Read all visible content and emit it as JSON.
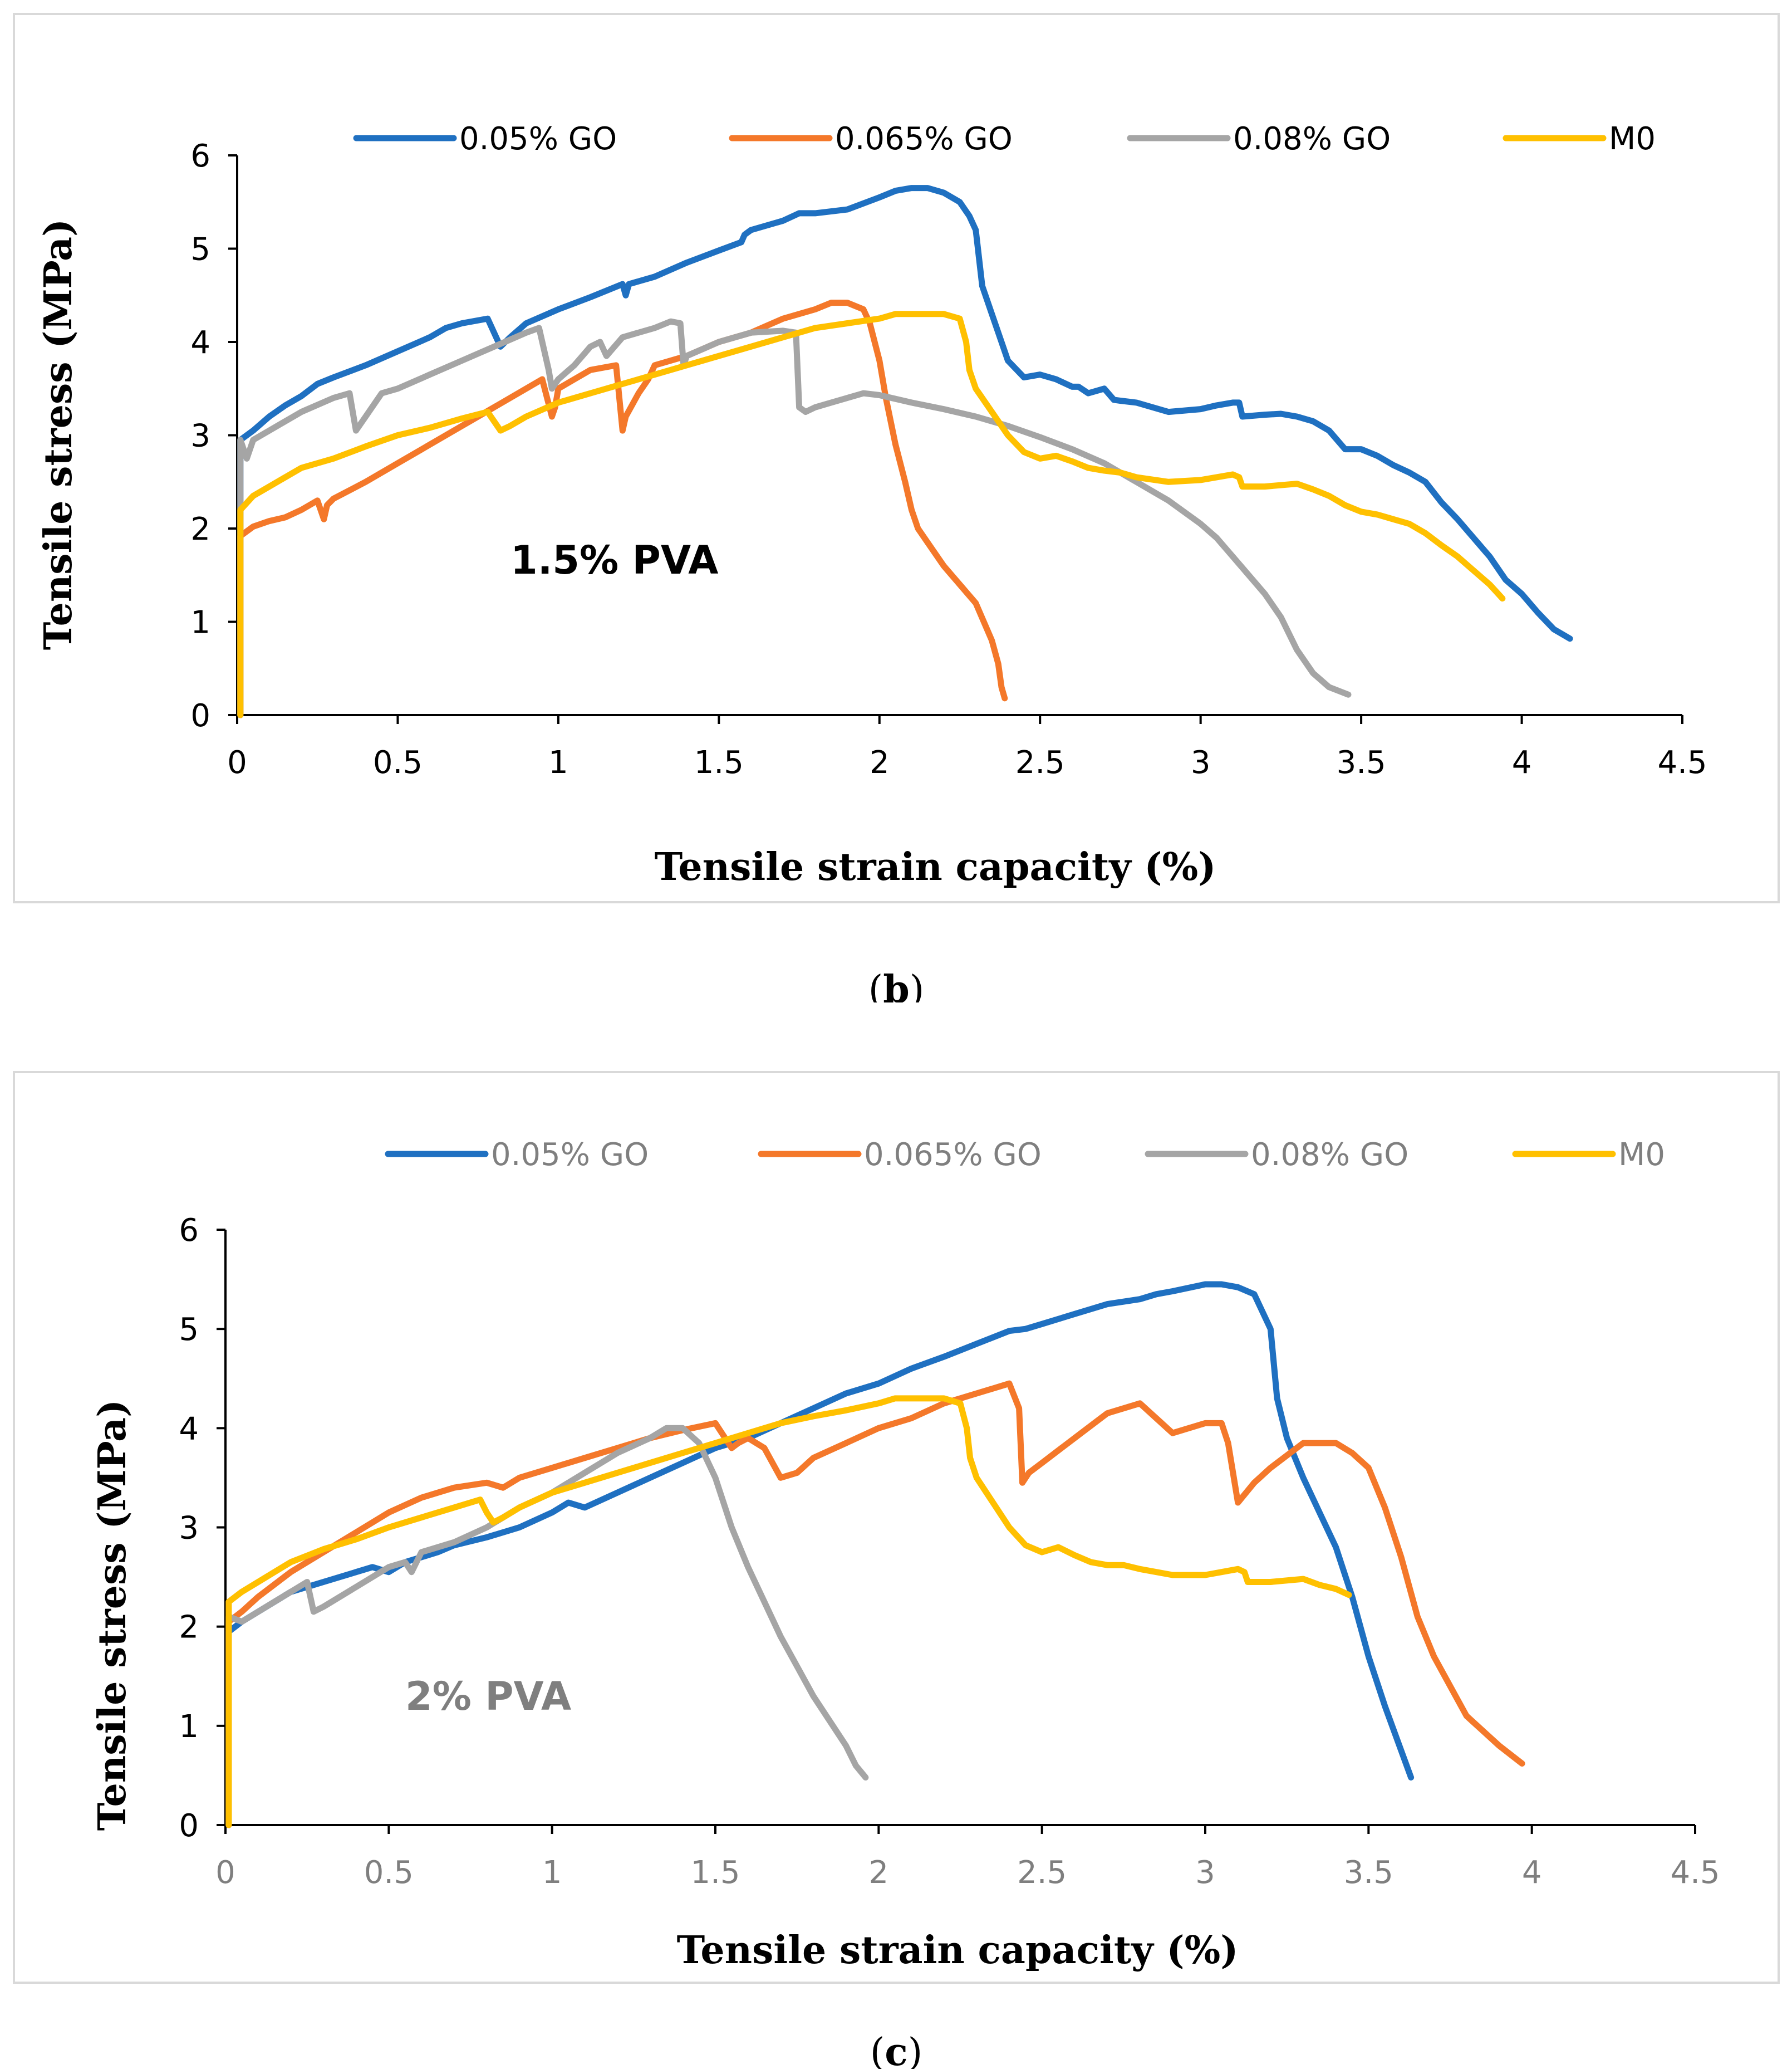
{
  "colors": {
    "s005": "#1F70C1",
    "s0065": "#F4782A",
    "s008": "#A5A5A5",
    "sM0": "#FFC000",
    "frame": "#D9D9D9",
    "axis": "#000000"
  },
  "chart_data": [
    {
      "type": "line",
      "caption_letter": "b",
      "annotation": "1.5% PVA",
      "xlabel": "Tensile strain capacity (%)",
      "ylabel": "Tensile stress (MPa)",
      "xlim": [
        0,
        4.5
      ],
      "ylim": [
        0,
        6
      ],
      "xticks": [
        "0",
        "0.5",
        "1",
        "1.5",
        "2",
        "2.5",
        "3",
        "3.5",
        "4",
        "4.5"
      ],
      "yticks": [
        "0",
        "1",
        "2",
        "3",
        "4",
        "5",
        "6"
      ],
      "series": [
        {
          "name": "0.05% GO",
          "color_key": "s005",
          "x": [
            0.01,
            0.01,
            0.05,
            0.1,
            0.15,
            0.2,
            0.25,
            0.3,
            0.4,
            0.5,
            0.6,
            0.65,
            0.7,
            0.78,
            0.8,
            0.82,
            0.85,
            0.9,
            1,
            1.1,
            1.2,
            1.21,
            1.22,
            1.3,
            1.4,
            1.5,
            1.57,
            1.58,
            1.6,
            1.7,
            1.75,
            1.8,
            1.9,
            2,
            2.05,
            2.1,
            2.15,
            2.2,
            2.25,
            2.28,
            2.3,
            2.31,
            2.32,
            2.35,
            2.38,
            2.4,
            2.45,
            2.5,
            2.55,
            2.6,
            2.62,
            2.65,
            2.7,
            2.73,
            2.75,
            2.8,
            2.9,
            3,
            3.05,
            3.1,
            3.12,
            3.13,
            3.2,
            3.25,
            3.3,
            3.35,
            3.4,
            3.45,
            3.5,
            3.55,
            3.6,
            3.65,
            3.7,
            3.75,
            3.8,
            3.85,
            3.9,
            3.95,
            4,
            4.05,
            4.1,
            4.15
          ],
          "y": [
            0,
            2.95,
            3.05,
            3.2,
            3.32,
            3.42,
            3.55,
            3.62,
            3.75,
            3.9,
            4.05,
            4.15,
            4.2,
            4.25,
            4.1,
            3.95,
            4.05,
            4.2,
            4.35,
            4.48,
            4.62,
            4.5,
            4.62,
            4.7,
            4.85,
            4.98,
            5.07,
            5.15,
            5.2,
            5.3,
            5.38,
            5.38,
            5.42,
            5.55,
            5.62,
            5.65,
            5.65,
            5.6,
            5.5,
            5.35,
            5.2,
            4.9,
            4.6,
            4.3,
            4.0,
            3.8,
            3.62,
            3.65,
            3.6,
            3.52,
            3.52,
            3.45,
            3.5,
            3.38,
            3.37,
            3.35,
            3.25,
            3.28,
            3.32,
            3.35,
            3.35,
            3.2,
            3.22,
            3.23,
            3.2,
            3.15,
            3.05,
            2.85,
            2.85,
            2.78,
            2.68,
            2.6,
            2.5,
            2.28,
            2.1,
            1.9,
            1.7,
            1.45,
            1.3,
            1.1,
            0.92,
            0.82
          ]
        },
        {
          "name": "0.065% GO",
          "color_key": "s0065",
          "x": [
            0.01,
            0.01,
            0.05,
            0.1,
            0.15,
            0.2,
            0.25,
            0.27,
            0.28,
            0.3,
            0.4,
            0.5,
            0.6,
            0.7,
            0.8,
            0.9,
            0.95,
            0.98,
            0.99,
            1,
            1.05,
            1.1,
            1.18,
            1.2,
            1.21,
            1.25,
            1.28,
            1.3,
            1.4,
            1.5,
            1.6,
            1.7,
            1.8,
            1.85,
            1.9,
            1.95,
            1.97,
            2,
            2.02,
            2.05,
            2.08,
            2.1,
            2.12,
            2.15,
            2.2,
            2.25,
            2.3,
            2.35,
            2.37,
            2.38,
            2.39
          ],
          "y": [
            0,
            1.92,
            2.02,
            2.08,
            2.12,
            2.2,
            2.3,
            2.1,
            2.25,
            2.32,
            2.5,
            2.7,
            2.9,
            3.1,
            3.3,
            3.5,
            3.6,
            3.2,
            3.3,
            3.5,
            3.6,
            3.7,
            3.75,
            3.05,
            3.2,
            3.45,
            3.6,
            3.75,
            3.85,
            4.0,
            4.1,
            4.25,
            4.35,
            4.42,
            4.42,
            4.35,
            4.2,
            3.8,
            3.4,
            2.9,
            2.5,
            2.2,
            2.0,
            1.85,
            1.6,
            1.4,
            1.2,
            0.8,
            0.55,
            0.3,
            0.18
          ]
        },
        {
          "name": "0.08% GO",
          "color_key": "s008",
          "x": [
            0.01,
            0.01,
            0.03,
            0.05,
            0.1,
            0.2,
            0.3,
            0.35,
            0.37,
            0.4,
            0.45,
            0.5,
            0.6,
            0.7,
            0.8,
            0.9,
            0.94,
            0.97,
            0.98,
            1,
            1.05,
            1.1,
            1.13,
            1.15,
            1.2,
            1.3,
            1.35,
            1.38,
            1.39,
            1.4,
            1.5,
            1.6,
            1.7,
            1.74,
            1.75,
            1.77,
            1.8,
            1.85,
            1.9,
            1.95,
            2,
            2.1,
            2.2,
            2.3,
            2.4,
            2.5,
            2.6,
            2.7,
            2.8,
            2.9,
            3,
            3.05,
            3.1,
            3.15,
            3.2,
            3.25,
            3.3,
            3.35,
            3.4,
            3.46
          ],
          "y": [
            0,
            2.95,
            2.75,
            2.95,
            3.05,
            3.25,
            3.4,
            3.45,
            3.05,
            3.2,
            3.45,
            3.5,
            3.65,
            3.8,
            3.95,
            4.1,
            4.15,
            3.7,
            3.5,
            3.6,
            3.75,
            3.95,
            4.0,
            3.85,
            4.05,
            4.15,
            4.22,
            4.2,
            3.75,
            3.85,
            4.0,
            4.1,
            4.12,
            4.1,
            3.3,
            3.25,
            3.3,
            3.35,
            3.4,
            3.45,
            3.43,
            3.35,
            3.28,
            3.2,
            3.1,
            2.98,
            2.85,
            2.7,
            2.5,
            2.3,
            2.05,
            1.9,
            1.7,
            1.5,
            1.3,
            1.05,
            0.7,
            0.45,
            0.3,
            0.22
          ]
        },
        {
          "name": "M0",
          "color_key": "sM0",
          "x": [
            0.01,
            0.01,
            0.05,
            0.1,
            0.2,
            0.3,
            0.4,
            0.5,
            0.6,
            0.7,
            0.78,
            0.8,
            0.82,
            0.85,
            0.9,
            1,
            1.1,
            1.2,
            1.3,
            1.4,
            1.5,
            1.6,
            1.7,
            1.8,
            1.9,
            2,
            2.05,
            2.1,
            2.15,
            2.2,
            2.25,
            2.27,
            2.28,
            2.3,
            2.35,
            2.4,
            2.45,
            2.5,
            2.55,
            2.6,
            2.65,
            2.7,
            2.75,
            2.8,
            2.9,
            3,
            3.05,
            3.1,
            3.12,
            3.13,
            3.2,
            3.3,
            3.35,
            3.4,
            3.45,
            3.5,
            3.55,
            3.6,
            3.65,
            3.7,
            3.75,
            3.8,
            3.85,
            3.9,
            3.94
          ],
          "y": [
            0,
            2.2,
            2.35,
            2.45,
            2.65,
            2.75,
            2.88,
            3.0,
            3.08,
            3.18,
            3.25,
            3.15,
            3.05,
            3.1,
            3.2,
            3.35,
            3.45,
            3.55,
            3.65,
            3.75,
            3.85,
            3.95,
            4.05,
            4.15,
            4.2,
            4.25,
            4.3,
            4.3,
            4.3,
            4.3,
            4.25,
            4.0,
            3.7,
            3.5,
            3.25,
            3.0,
            2.82,
            2.75,
            2.78,
            2.72,
            2.65,
            2.62,
            2.6,
            2.55,
            2.5,
            2.52,
            2.55,
            2.58,
            2.55,
            2.45,
            2.45,
            2.48,
            2.42,
            2.35,
            2.25,
            2.18,
            2.15,
            2.1,
            2.05,
            1.95,
            1.82,
            1.7,
            1.55,
            1.4,
            1.25
          ]
        }
      ]
    },
    {
      "type": "line",
      "caption_letter": "c",
      "annotation": "2% PVA",
      "xlabel": "Tensile strain capacity (%)",
      "ylabel": "Tensile stress (MPa)",
      "xlim": [
        0,
        4.5
      ],
      "ylim": [
        0,
        6
      ],
      "xticks": [
        "0",
        "0.5",
        "1",
        "1.5",
        "2",
        "2.5",
        "3",
        "3.5",
        "4",
        "4.5"
      ],
      "yticks": [
        "0",
        "1",
        "2",
        "3",
        "4",
        "5",
        "6"
      ],
      "series": [
        {
          "name": "0.05% GO",
          "color_key": "s005",
          "x": [
            0.01,
            0.01,
            0.05,
            0.1,
            0.2,
            0.3,
            0.4,
            0.45,
            0.5,
            0.55,
            0.6,
            0.65,
            0.7,
            0.8,
            0.9,
            1,
            1.05,
            1.1,
            1.2,
            1.3,
            1.4,
            1.5,
            1.6,
            1.7,
            1.8,
            1.9,
            2,
            2.1,
            2.2,
            2.3,
            2.4,
            2.45,
            2.5,
            2.55,
            2.6,
            2.7,
            2.8,
            2.85,
            2.9,
            3,
            3.05,
            3.1,
            3.15,
            3.2,
            3.22,
            3.25,
            3.3,
            3.35,
            3.4,
            3.45,
            3.5,
            3.55,
            3.6,
            3.63
          ],
          "y": [
            0,
            1.95,
            2.05,
            2.15,
            2.35,
            2.45,
            2.55,
            2.6,
            2.55,
            2.65,
            2.7,
            2.75,
            2.82,
            2.9,
            3.0,
            3.15,
            3.25,
            3.2,
            3.35,
            3.5,
            3.65,
            3.8,
            3.9,
            4.05,
            4.2,
            4.35,
            4.45,
            4.6,
            4.72,
            4.85,
            4.98,
            5.0,
            5.05,
            5.1,
            5.15,
            5.25,
            5.3,
            5.35,
            5.38,
            5.45,
            5.45,
            5.42,
            5.35,
            5.0,
            4.3,
            3.9,
            3.5,
            3.15,
            2.8,
            2.3,
            1.7,
            1.2,
            0.75,
            0.48
          ]
        },
        {
          "name": "0.065% GO",
          "color_key": "s0065",
          "x": [
            0.01,
            0.01,
            0.05,
            0.1,
            0.2,
            0.3,
            0.4,
            0.5,
            0.6,
            0.7,
            0.8,
            0.85,
            0.9,
            0.95,
            1,
            1.1,
            1.2,
            1.3,
            1.4,
            1.5,
            1.55,
            1.57,
            1.6,
            1.65,
            1.7,
            1.75,
            1.8,
            1.9,
            2,
            2.1,
            2.2,
            2.3,
            2.35,
            2.4,
            2.43,
            2.44,
            2.46,
            2.5,
            2.6,
            2.7,
            2.8,
            2.85,
            2.9,
            3,
            3.05,
            3.07,
            3.1,
            3.15,
            3.2,
            3.3,
            3.4,
            3.45,
            3.5,
            3.55,
            3.6,
            3.65,
            3.7,
            3.8,
            3.9,
            3.97
          ],
          "y": [
            0,
            2.05,
            2.15,
            2.3,
            2.55,
            2.75,
            2.95,
            3.15,
            3.3,
            3.4,
            3.45,
            3.4,
            3.5,
            3.55,
            3.6,
            3.7,
            3.8,
            3.9,
            3.98,
            4.05,
            3.8,
            3.85,
            3.9,
            3.8,
            3.5,
            3.55,
            3.7,
            3.85,
            4.0,
            4.1,
            4.25,
            4.35,
            4.4,
            4.45,
            4.2,
            3.45,
            3.55,
            3.65,
            3.9,
            4.15,
            4.25,
            4.1,
            3.95,
            4.05,
            4.05,
            3.85,
            3.25,
            3.45,
            3.6,
            3.85,
            3.85,
            3.75,
            3.6,
            3.2,
            2.7,
            2.1,
            1.7,
            1.1,
            0.8,
            0.62
          ]
        },
        {
          "name": "0.08% GO",
          "color_key": "s008",
          "x": [
            0.01,
            0.01,
            0.05,
            0.1,
            0.15,
            0.2,
            0.25,
            0.27,
            0.3,
            0.4,
            0.5,
            0.55,
            0.57,
            0.6,
            0.7,
            0.8,
            0.9,
            1,
            1.05,
            1.1,
            1.2,
            1.3,
            1.35,
            1.4,
            1.45,
            1.5,
            1.55,
            1.6,
            1.65,
            1.7,
            1.75,
            1.8,
            1.85,
            1.9,
            1.93,
            1.96
          ],
          "y": [
            0,
            2.1,
            2.05,
            2.15,
            2.25,
            2.35,
            2.45,
            2.15,
            2.2,
            2.4,
            2.6,
            2.65,
            2.55,
            2.75,
            2.85,
            3.0,
            3.2,
            3.35,
            3.45,
            3.55,
            3.75,
            3.9,
            4.0,
            4.0,
            3.85,
            3.5,
            3.0,
            2.6,
            2.25,
            1.9,
            1.6,
            1.3,
            1.05,
            0.8,
            0.6,
            0.48
          ]
        },
        {
          "name": "M0",
          "color_key": "sM0",
          "x": [
            0.01,
            0.01,
            0.05,
            0.1,
            0.2,
            0.3,
            0.4,
            0.5,
            0.6,
            0.7,
            0.78,
            0.8,
            0.82,
            0.85,
            0.9,
            1,
            1.1,
            1.2,
            1.3,
            1.4,
            1.5,
            1.6,
            1.7,
            1.8,
            1.9,
            2,
            2.05,
            2.1,
            2.15,
            2.2,
            2.25,
            2.27,
            2.28,
            2.3,
            2.35,
            2.4,
            2.45,
            2.5,
            2.55,
            2.6,
            2.65,
            2.7,
            2.75,
            2.8,
            2.9,
            3,
            3.05,
            3.1,
            3.12,
            3.13,
            3.2,
            3.3,
            3.35,
            3.4,
            3.44
          ],
          "y": [
            0,
            2.25,
            2.35,
            2.45,
            2.65,
            2.78,
            2.88,
            3.0,
            3.1,
            3.2,
            3.28,
            3.15,
            3.05,
            3.1,
            3.2,
            3.35,
            3.45,
            3.55,
            3.65,
            3.75,
            3.85,
            3.95,
            4.05,
            4.12,
            4.18,
            4.25,
            4.3,
            4.3,
            4.3,
            4.3,
            4.25,
            4.0,
            3.7,
            3.5,
            3.25,
            3.0,
            2.82,
            2.75,
            2.8,
            2.72,
            2.65,
            2.62,
            2.62,
            2.58,
            2.52,
            2.52,
            2.55,
            2.58,
            2.55,
            2.45,
            2.45,
            2.48,
            2.42,
            2.38,
            2.32
          ]
        }
      ]
    }
  ]
}
